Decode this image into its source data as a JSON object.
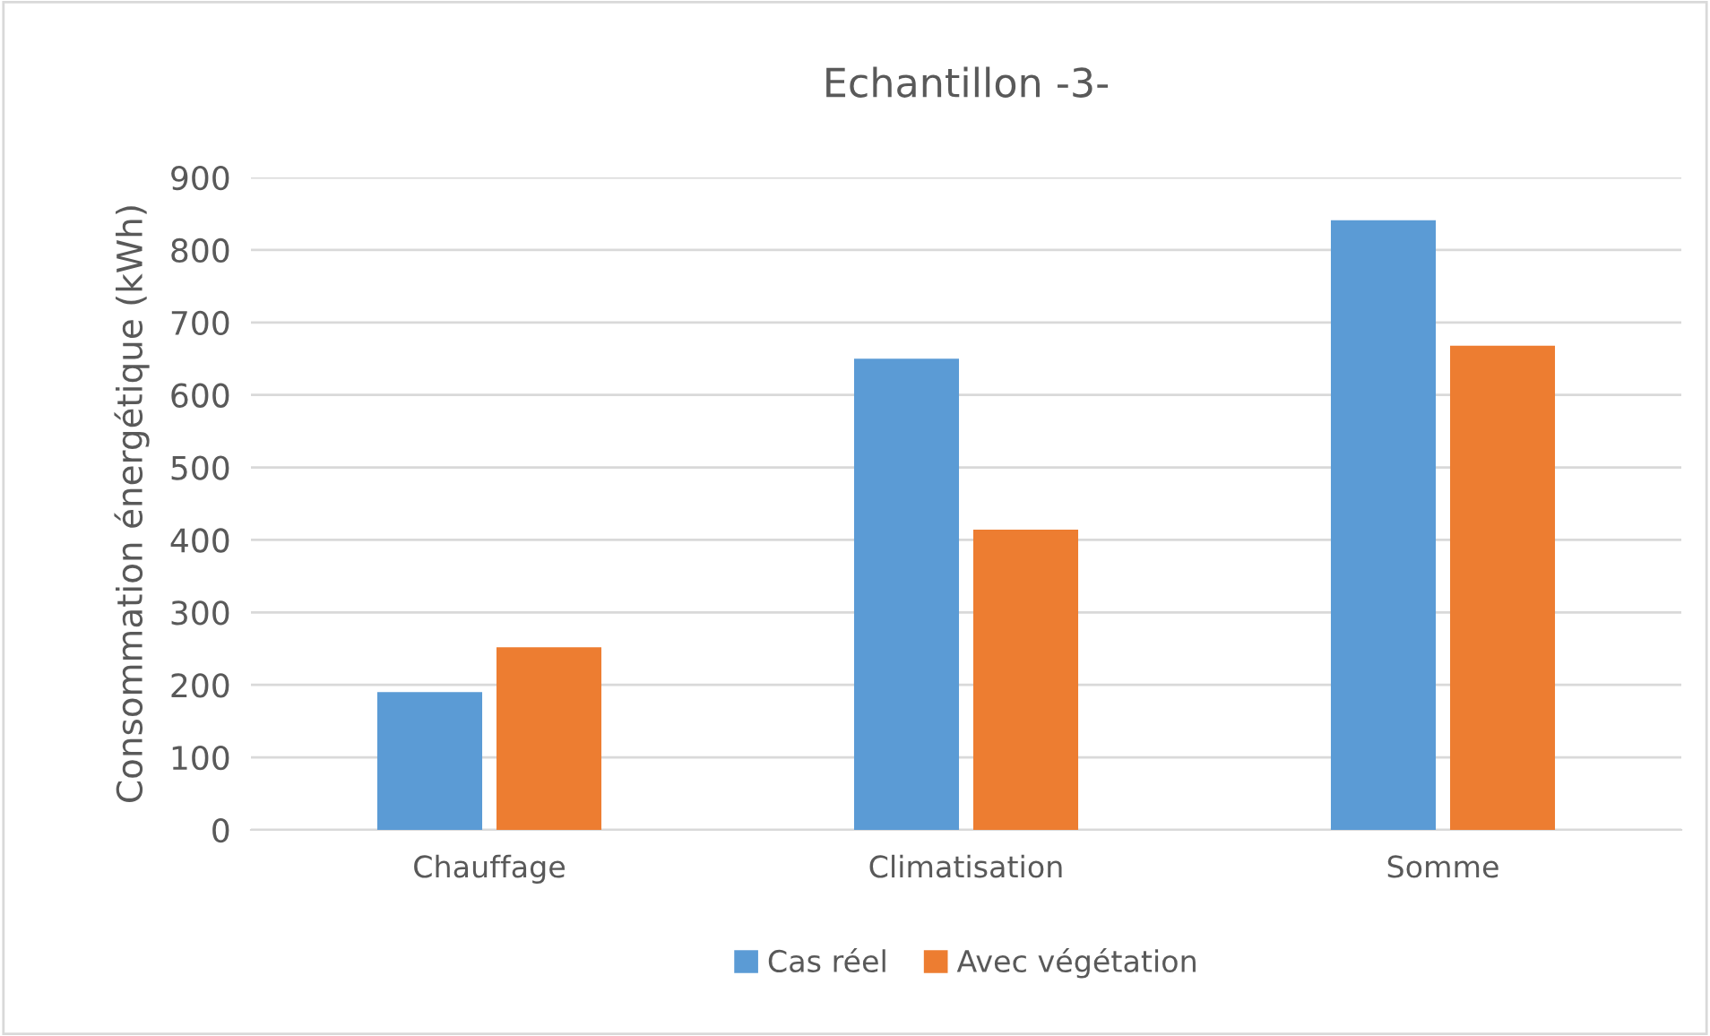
{
  "chart_data": {
    "type": "bar",
    "title": "Echantillon -3-",
    "ylabel": "Consommation énergétique (kWh)",
    "categories": [
      "Chauffage",
      "Climatisation",
      "Somme"
    ],
    "series": [
      {
        "name": "Cas réel",
        "color": "#5b9bd5",
        "values": [
          190,
          650,
          841
        ]
      },
      {
        "name": "Avec végétation",
        "color": "#ed7d31",
        "values": [
          252,
          414,
          668
        ]
      }
    ],
    "ylim": [
      0,
      900
    ],
    "yticks": [
      0,
      100,
      200,
      300,
      400,
      500,
      600,
      700,
      800,
      900
    ],
    "grid": "y",
    "legend": "bottom"
  }
}
